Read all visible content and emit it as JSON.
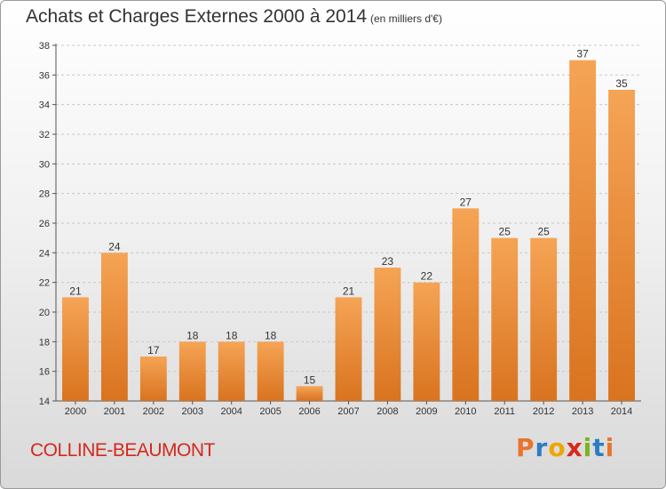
{
  "header": {
    "title": "Achats et Charges Externes 2000 à 2014",
    "subtitle": "(en milliers d'€)"
  },
  "footer": {
    "place": "COLLINE-BEAUMONT",
    "logo_letters": [
      "P",
      "r",
      "o",
      "x",
      "i",
      "t",
      "i"
    ],
    "logo_colors": [
      "#e9742b",
      "#2c7cc4",
      "#f0a500",
      "#d9281c",
      "#7ab51d",
      "#2c7cc4",
      "#e9742b"
    ]
  },
  "colors": {
    "bar_top": "#f5a455",
    "bar_bottom": "#d9731f",
    "grid": "#c8c8c8",
    "axis": "#555555"
  },
  "chart_data": {
    "type": "bar",
    "title": "Achats et Charges Externes 2000 à 2014",
    "subtitle": "(en milliers d'€)",
    "categories": [
      "2000",
      "2001",
      "2002",
      "2003",
      "2004",
      "2005",
      "2006",
      "2007",
      "2008",
      "2009",
      "2010",
      "2011",
      "2012",
      "2013",
      "2014"
    ],
    "values": [
      21,
      24,
      17,
      18,
      18,
      18,
      15,
      21,
      23,
      22,
      27,
      25,
      25,
      37,
      35
    ],
    "ylim": [
      14,
      38
    ],
    "yticks": [
      14,
      16,
      18,
      20,
      22,
      24,
      26,
      28,
      30,
      32,
      34,
      36,
      38
    ],
    "xlabel": "",
    "ylabel": "",
    "grid": true,
    "data_labels": true
  }
}
